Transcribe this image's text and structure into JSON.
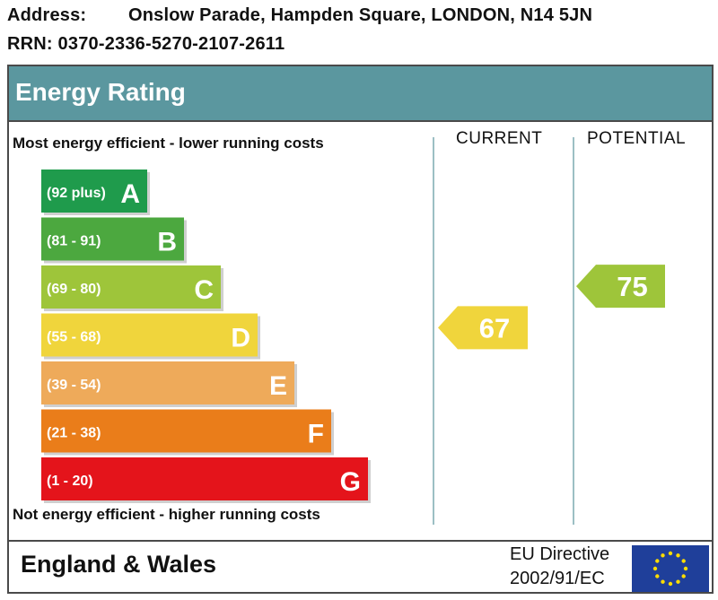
{
  "address": {
    "label": "Address:",
    "value": "Onslow Parade, Hampden Square, LONDON, N14 5JN"
  },
  "rrn": "RRN: 0370-2336-5270-2107-2611",
  "title": "Energy Rating",
  "top_note": "Most energy efficient - lower running costs",
  "bottom_note": "Not energy efficient - higher running costs",
  "region": "England & Wales",
  "directive": {
    "line1": "EU Directive",
    "line2": "2002/91/EC"
  },
  "chart_data": {
    "type": "bar",
    "title": "Energy Rating",
    "categories": [
      "A",
      "B",
      "C",
      "D",
      "E",
      "F",
      "G"
    ],
    "bands": [
      {
        "letter": "A",
        "range": "(92 plus)",
        "min": 92,
        "max": 100,
        "color": "#1f9b4c"
      },
      {
        "letter": "B",
        "range": "(81 - 91)",
        "min": 81,
        "max": 91,
        "color": "#4ca83f"
      },
      {
        "letter": "C",
        "range": "(69 - 80)",
        "min": 69,
        "max": 80,
        "color": "#9ec53a"
      },
      {
        "letter": "D",
        "range": "(55 - 68)",
        "min": 55,
        "max": 68,
        "color": "#f0d53c"
      },
      {
        "letter": "E",
        "range": "(39 - 54)",
        "min": 39,
        "max": 54,
        "color": "#eeaa5a"
      },
      {
        "letter": "F",
        "range": "(21 - 38)",
        "min": 21,
        "max": 38,
        "color": "#ea7d1a"
      },
      {
        "letter": "G",
        "range": "(1 - 20)",
        "min": 1,
        "max": 20,
        "color": "#e4141b"
      }
    ],
    "columns": [
      "CURRENT",
      "POTENTIAL"
    ],
    "current": {
      "value": 67,
      "band": "D",
      "color": "#f0d53c"
    },
    "potential": {
      "value": 75,
      "band": "C",
      "color": "#9ec53a"
    }
  }
}
